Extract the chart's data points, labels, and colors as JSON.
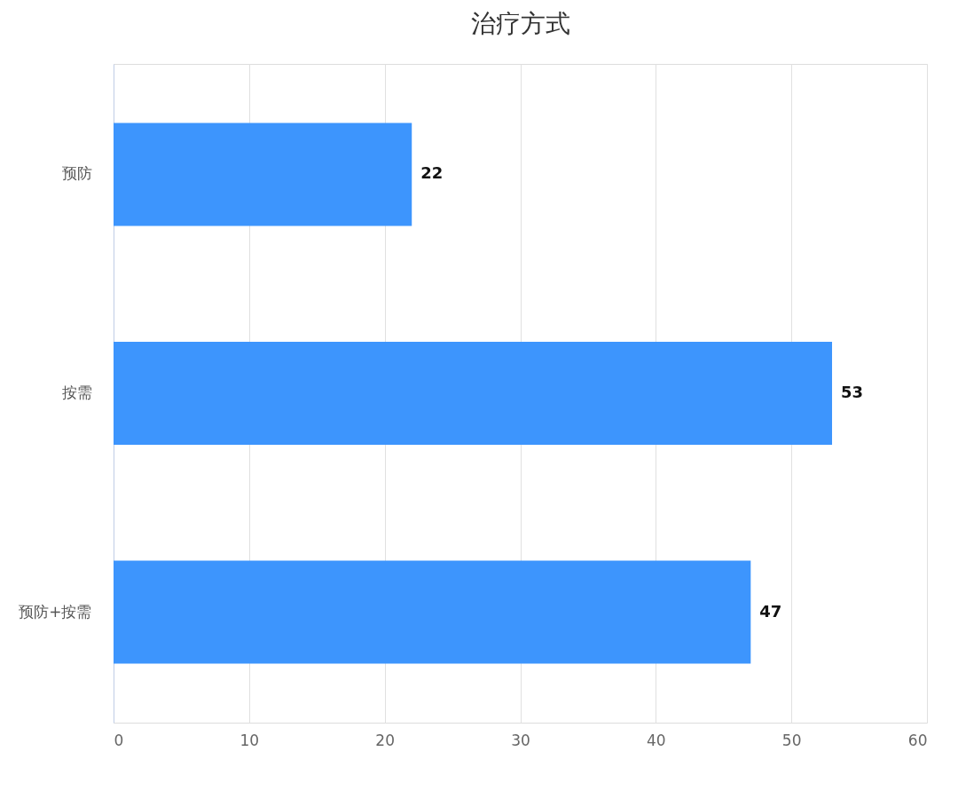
{
  "chart_data": {
    "type": "bar",
    "orientation": "horizontal",
    "title": "治疗方式",
    "categories": [
      "预防",
      "按需",
      "预防+按需"
    ],
    "series": [
      {
        "color": "#3d95fd",
        "values": [
          22,
          53,
          47
        ]
      }
    ],
    "xlim": [
      0,
      60
    ],
    "xticks": [
      0,
      10,
      20,
      30,
      40,
      50,
      60
    ],
    "grid": "x",
    "data_labels": true,
    "legend": false
  }
}
